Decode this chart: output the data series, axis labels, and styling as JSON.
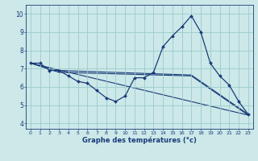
{
  "xlabel": "Graphe des températures (°c)",
  "bg_color": "#cce8e8",
  "line_color": "#1a3a7a",
  "grid_color": "#99cccc",
  "x_ticks": [
    0,
    1,
    2,
    3,
    4,
    5,
    6,
    7,
    8,
    9,
    10,
    11,
    12,
    13,
    14,
    15,
    16,
    17,
    18,
    19,
    20,
    21,
    22,
    23
  ],
  "y_ticks": [
    4,
    5,
    6,
    7,
    8,
    9,
    10
  ],
  "ylim": [
    3.7,
    10.5
  ],
  "xlim": [
    -0.5,
    23.5
  ],
  "main_line": {
    "x": [
      0,
      1,
      2,
      3,
      4,
      5,
      6,
      7,
      8,
      9,
      10,
      11,
      12,
      13,
      14,
      15,
      16,
      17,
      18,
      19,
      20,
      21,
      22,
      23
    ],
    "y": [
      7.3,
      7.3,
      6.9,
      6.9,
      6.6,
      6.3,
      6.2,
      5.8,
      5.4,
      5.2,
      5.5,
      6.5,
      6.5,
      6.8,
      8.2,
      8.8,
      9.3,
      9.9,
      9.0,
      7.3,
      6.6,
      6.1,
      5.2,
      4.5
    ]
  },
  "trend_lines": [
    {
      "x": [
        0,
        3,
        17,
        23
      ],
      "y": [
        7.3,
        6.9,
        6.65,
        4.5
      ]
    },
    {
      "x": [
        0,
        3,
        17,
        23
      ],
      "y": [
        7.3,
        6.8,
        6.6,
        4.45
      ]
    },
    {
      "x": [
        0,
        23
      ],
      "y": [
        7.3,
        4.45
      ]
    }
  ]
}
